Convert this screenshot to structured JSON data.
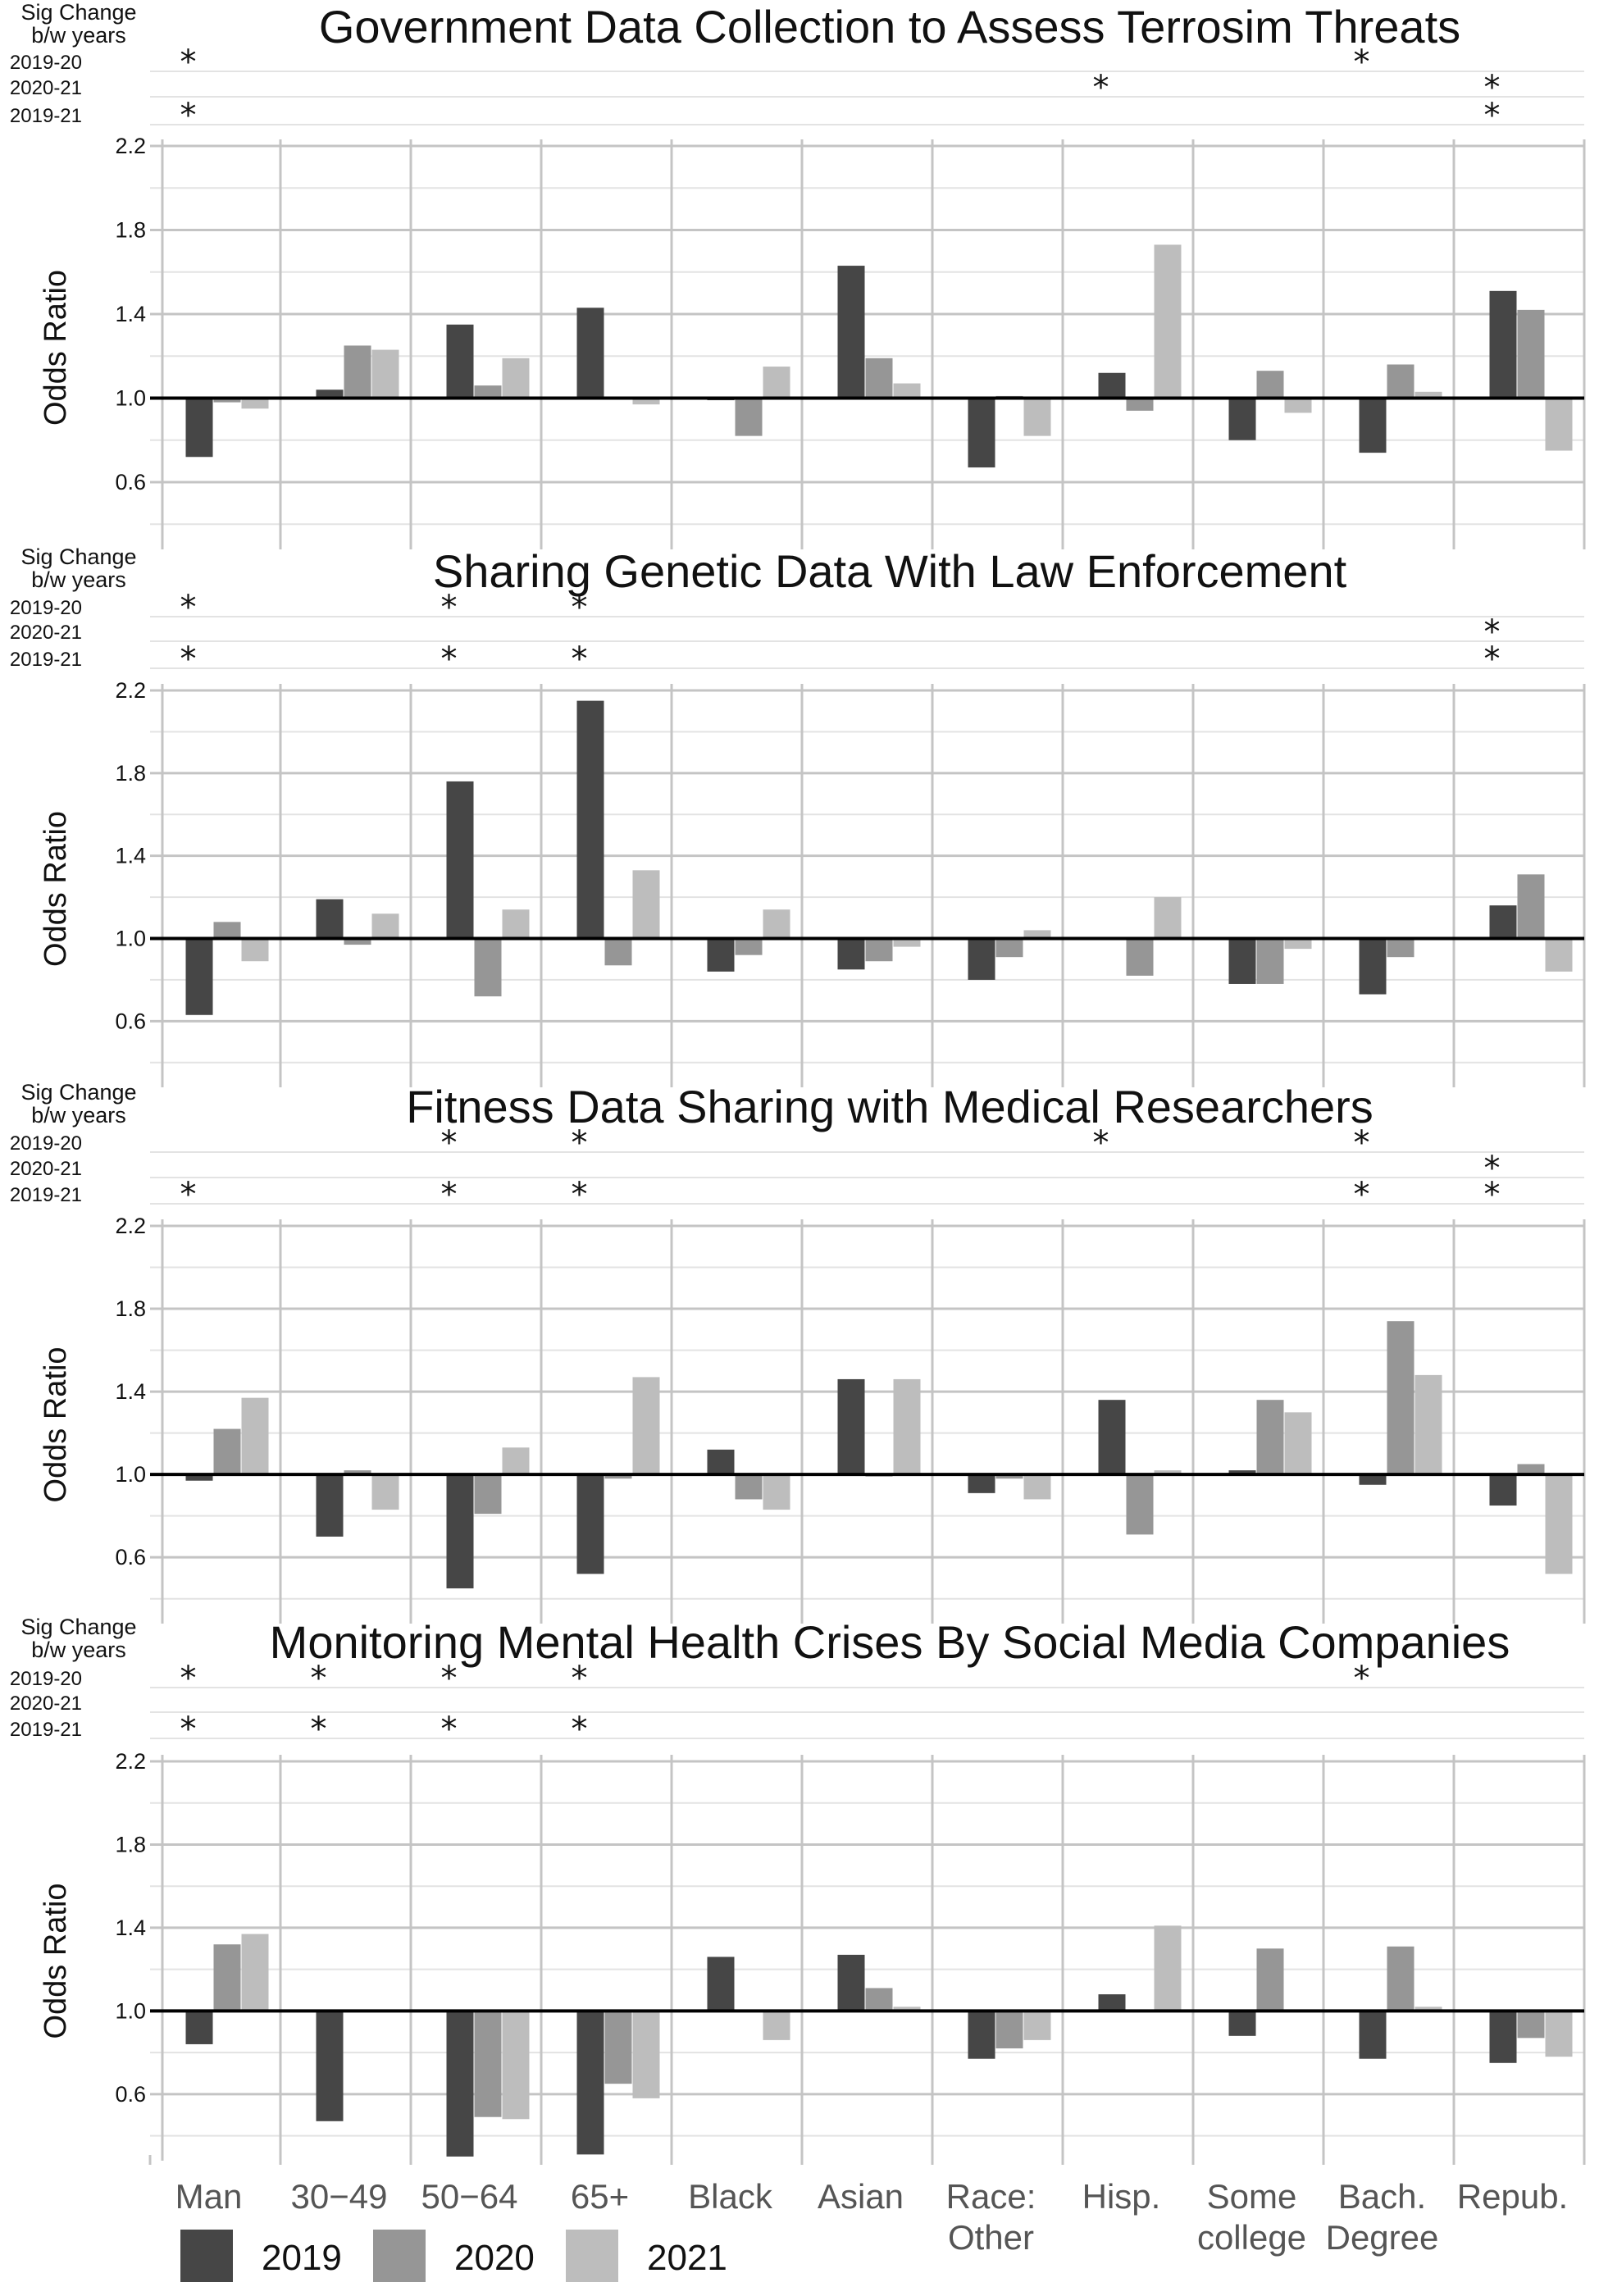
{
  "colors": {
    "y2019": "#464646",
    "y2020": "#969696",
    "y2021": "#bdbdbd",
    "ref": "#000000",
    "grid_major": "#c4c4c4",
    "grid_minor": "#e3e3e3"
  },
  "categories": [
    "Man",
    "30−49",
    "50−64",
    "65+",
    "Black",
    "Asian",
    "Race:\nOther",
    "Hisp.",
    "Some\ncollege",
    "Bach.\nDegree",
    "Repub."
  ],
  "legend": [
    {
      "label": "2019",
      "color": "#464646"
    },
    {
      "label": "2020",
      "color": "#969696"
    },
    {
      "label": "2021",
      "color": "#bdbdbd"
    }
  ],
  "sig_header": "Sig Change\nb/w years",
  "sig_rows": [
    "2019-20",
    "2020-21",
    "2019-21"
  ],
  "ylabel": "Odds Ratio",
  "yticks": [
    "0.6",
    "1.0",
    "1.4",
    "1.8",
    "2.2"
  ],
  "chart_data": [
    {
      "type": "bar",
      "title": "Government Data Collection to Assess Terrosim Threats",
      "ylabel": "Odds Ratio",
      "reference_line": 1.0,
      "ylim": [
        0.3,
        2.2
      ],
      "series": [
        {
          "name": "2019",
          "values": [
            0.72,
            1.04,
            1.35,
            1.43,
            0.99,
            1.63,
            0.67,
            1.12,
            0.8,
            0.74,
            1.51
          ]
        },
        {
          "name": "2020",
          "values": [
            0.98,
            1.25,
            1.06,
            1.0,
            0.82,
            1.19,
            1.01,
            0.94,
            1.13,
            1.16,
            1.42
          ]
        },
        {
          "name": "2021",
          "values": [
            0.95,
            1.23,
            1.19,
            0.97,
            1.15,
            1.07,
            0.82,
            1.73,
            0.93,
            1.03,
            0.75
          ]
        }
      ],
      "sig": {
        "2019-20": [
          "Man",
          "Bach.\nDegree"
        ],
        "2020-21": [
          "Hisp.",
          "Repub."
        ],
        "2019-21": [
          "Man",
          "Repub."
        ]
      }
    },
    {
      "type": "bar",
      "title": "Sharing Genetic Data With Law Enforcement",
      "ylabel": "Odds Ratio",
      "reference_line": 1.0,
      "ylim": [
        0.3,
        2.2
      ],
      "series": [
        {
          "name": "2019",
          "values": [
            0.63,
            1.19,
            1.76,
            2.15,
            0.84,
            0.85,
            0.8,
            1.0,
            0.78,
            0.73,
            1.16
          ]
        },
        {
          "name": "2020",
          "values": [
            1.08,
            0.97,
            0.72,
            0.87,
            0.92,
            0.89,
            0.91,
            0.82,
            0.78,
            0.91,
            1.31
          ]
        },
        {
          "name": "2021",
          "values": [
            0.89,
            1.12,
            1.14,
            1.33,
            1.14,
            0.96,
            1.04,
            1.2,
            0.95,
            1.0,
            0.84
          ]
        }
      ],
      "sig": {
        "2019-20": [
          "Man",
          "50−64",
          "65+"
        ],
        "2020-21": [
          "Repub."
        ],
        "2019-21": [
          "Man",
          "50−64",
          "65+",
          "Repub."
        ]
      }
    },
    {
      "type": "bar",
      "title": "Fitness Data Sharing with Medical Researchers",
      "ylabel": "Odds Ratio",
      "reference_line": 1.0,
      "ylim": [
        0.3,
        2.2
      ],
      "series": [
        {
          "name": "2019",
          "values": [
            0.97,
            0.7,
            0.45,
            0.52,
            1.12,
            1.46,
            0.91,
            1.36,
            1.02,
            0.95,
            0.85
          ]
        },
        {
          "name": "2020",
          "values": [
            1.22,
            1.02,
            0.81,
            0.98,
            0.88,
            0.99,
            0.98,
            0.71,
            1.36,
            1.74,
            1.05
          ]
        },
        {
          "name": "2021",
          "values": [
            1.37,
            0.83,
            1.13,
            1.47,
            0.83,
            1.46,
            0.88,
            1.02,
            1.3,
            1.48,
            0.52
          ]
        }
      ],
      "sig": {
        "2019-20": [
          "50−64",
          "65+",
          "Hisp.",
          "Bach.\nDegree"
        ],
        "2020-21": [
          "Repub."
        ],
        "2019-21": [
          "Man",
          "50−64",
          "65+",
          "Bach.\nDegree",
          "Repub."
        ]
      }
    },
    {
      "type": "bar",
      "title": "Monitoring Mental Health Crises By Social Media Companies",
      "ylabel": "Odds Ratio",
      "reference_line": 1.0,
      "ylim": [
        0.3,
        2.2
      ],
      "series": [
        {
          "name": "2019",
          "values": [
            0.84,
            0.47,
            0.3,
            0.31,
            1.26,
            1.27,
            0.77,
            1.08,
            0.88,
            0.77,
            0.75
          ]
        },
        {
          "name": "2020",
          "values": [
            1.32,
            1.0,
            0.49,
            0.65,
            1.0,
            1.11,
            0.82,
            1.0,
            1.3,
            1.31,
            0.87
          ]
        },
        {
          "name": "2021",
          "values": [
            1.37,
            1.0,
            0.48,
            0.58,
            0.86,
            1.02,
            0.86,
            1.41,
            1.0,
            1.02,
            0.78
          ]
        }
      ],
      "sig": {
        "2019-20": [
          "Man",
          "30−49",
          "50−64",
          "65+",
          "Bach.\nDegree"
        ],
        "2020-21": [],
        "2019-21": [
          "Man",
          "30−49",
          "50−64",
          "65+"
        ]
      }
    }
  ]
}
